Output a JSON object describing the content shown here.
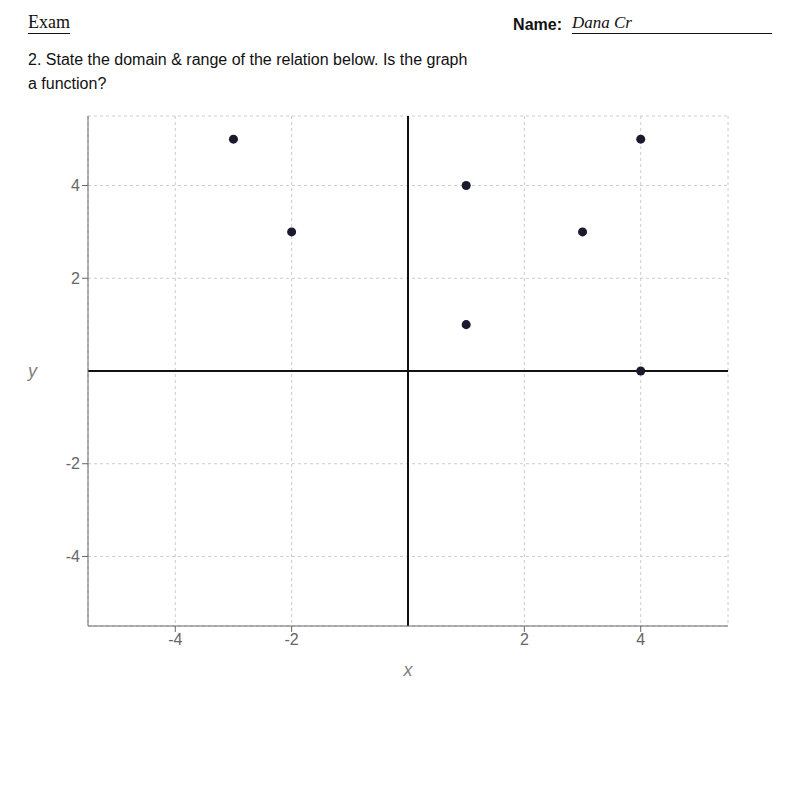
{
  "chart_data": {
    "type": "scatter",
    "title": "2.  State the domain & range of the relation below.  Is the graph a function?",
    "annotations": [
      "Exam",
      "Name:",
      "Dana Cr"
    ],
    "xlabel": "x",
    "ylabel": "y",
    "x": [
      -3,
      4,
      -2,
      3,
      1,
      1,
      4
    ],
    "values": [
      5,
      5,
      3,
      3,
      4,
      1,
      0
    ],
    "xlim": [
      -5.5,
      5.5
    ],
    "ylim": [
      -5.5,
      5.5
    ],
    "xticks": [
      -4,
      -2,
      2,
      4
    ],
    "yticks": [
      -4,
      -2,
      2,
      4
    ],
    "grid": true,
    "color": "#1a1a2e"
  }
}
